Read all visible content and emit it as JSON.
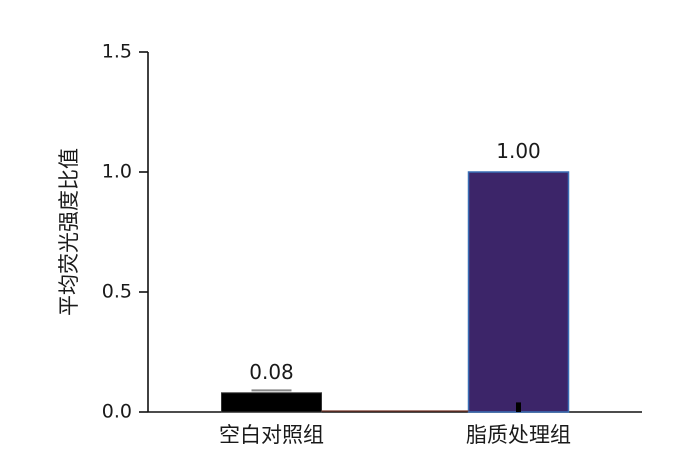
{
  "chart_data": {
    "type": "bar",
    "title": "",
    "xlabel": "",
    "ylabel": "平均荧光强度比值",
    "ylim": [
      0,
      1.5
    ],
    "yticks": [
      "0.0",
      "0.5",
      "1.0",
      "1.5"
    ],
    "categories": [
      "空白对照组",
      "脂质处理组"
    ],
    "values": [
      0.08,
      1.0
    ],
    "data_labels": [
      "0.08",
      "1.00"
    ],
    "error": [
      0.01,
      0.04
    ],
    "colors": [
      "#000000",
      "#3c2569"
    ],
    "grid": false,
    "legend": "none"
  }
}
